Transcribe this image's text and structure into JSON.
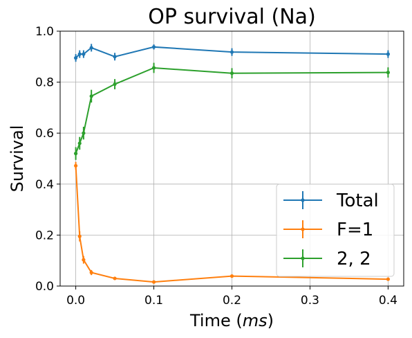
{
  "chart_data": {
    "type": "line",
    "title": "OP survival (Na)",
    "xlabel": "Time",
    "xlabel_unit": "ms",
    "ylabel": "Survival",
    "xlim": [
      -0.02,
      0.42
    ],
    "ylim": [
      0.0,
      1.0
    ],
    "xticks": [
      0.0,
      0.1,
      0.2,
      0.3,
      0.4
    ],
    "xtick_labels": [
      "0.0",
      "0.1",
      "0.2",
      "0.3",
      "0.4"
    ],
    "yticks": [
      0.0,
      0.2,
      0.4,
      0.6,
      0.8,
      1.0
    ],
    "ytick_labels": [
      "0.0",
      "0.2",
      "0.4",
      "0.6",
      "0.8",
      "1.0"
    ],
    "grid": true,
    "legend_position": "lower-right",
    "x": [
      0.0,
      0.005,
      0.01,
      0.02,
      0.05,
      0.1,
      0.2,
      0.4
    ],
    "series": [
      {
        "name": "Total",
        "color": "#1f77b4",
        "values": [
          0.895,
          0.91,
          0.91,
          0.935,
          0.9,
          0.938,
          0.918,
          0.91
        ],
        "errors": [
          0.015,
          0.015,
          0.015,
          0.015,
          0.015,
          0.01,
          0.015,
          0.015
        ]
      },
      {
        "name": "F=1",
        "color": "#ff7f0e",
        "values": [
          0.472,
          0.195,
          0.103,
          0.053,
          0.03,
          0.016,
          0.039,
          0.027
        ],
        "errors": [
          0.015,
          0.02,
          0.015,
          0.01,
          0.005,
          0.005,
          0.005,
          0.005
        ]
      },
      {
        "name": "2, 2",
        "color": "#2ca02c",
        "values": [
          0.52,
          0.56,
          0.6,
          0.745,
          0.792,
          0.856,
          0.835,
          0.838
        ],
        "errors": [
          0.025,
          0.025,
          0.025,
          0.025,
          0.02,
          0.02,
          0.02,
          0.02
        ]
      }
    ]
  }
}
